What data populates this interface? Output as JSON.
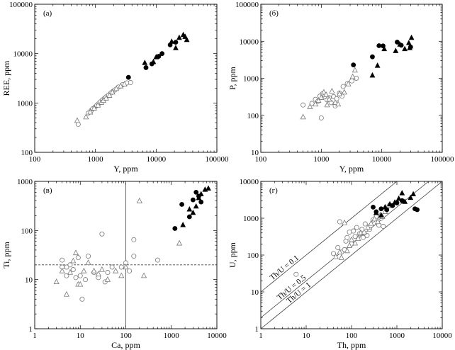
{
  "chart_data": [
    {
      "type": "scatter",
      "panel": "(а)",
      "xlabel": "Y, ppm",
      "ylabel": "REE, ppm",
      "xscale": "log",
      "yscale": "log",
      "xlim": [
        100,
        100000
      ],
      "ylim": [
        100,
        100000
      ],
      "xticks": [
        "100",
        "1000",
        "10000",
        "100000"
      ],
      "yticks": [
        "100",
        "1000",
        "10000",
        "100000"
      ],
      "series": [
        {
          "marker": "open-circle",
          "points": [
            [
              520,
              370
            ],
            [
              760,
              620
            ],
            [
              850,
              700
            ],
            [
              900,
              760
            ],
            [
              980,
              820
            ],
            [
              1050,
              890
            ],
            [
              1120,
              960
            ],
            [
              1200,
              1050
            ],
            [
              1300,
              1150
            ],
            [
              1400,
              1230
            ],
            [
              1500,
              1330
            ],
            [
              1650,
              1450
            ],
            [
              1800,
              1600
            ],
            [
              1950,
              1720
            ],
            [
              2100,
              1850
            ],
            [
              2400,
              2100
            ],
            [
              2800,
              2350
            ],
            [
              3300,
              2550
            ],
            [
              3800,
              2600
            ]
          ]
        },
        {
          "marker": "open-triangle",
          "points": [
            [
              500,
              440
            ],
            [
              700,
              520
            ],
            [
              820,
              650
            ],
            [
              950,
              780
            ],
            [
              1100,
              900
            ],
            [
              1250,
              1020
            ],
            [
              1350,
              1120
            ],
            [
              1500,
              1250
            ],
            [
              1700,
              1420
            ],
            [
              1900,
              1650
            ],
            [
              2200,
              1950
            ],
            [
              2600,
              2200
            ],
            [
              3000,
              2400
            ]
          ]
        },
        {
          "marker": "filled-circle",
          "points": [
            [
              3500,
              3300
            ],
            [
              6800,
              5200
            ],
            [
              8500,
              6200
            ],
            [
              11000,
              8800
            ],
            [
              12500,
              10000
            ],
            [
              17000,
              15000
            ],
            [
              21000,
              17000
            ]
          ]
        },
        {
          "marker": "filled-triangle",
          "points": [
            [
              6500,
              6500
            ],
            [
              9000,
              6800
            ],
            [
              10000,
              8500
            ],
            [
              18000,
              17500
            ],
            [
              21000,
              13000
            ],
            [
              24000,
              21000
            ],
            [
              28000,
              24000
            ],
            [
              30000,
              22000
            ],
            [
              32000,
              19000
            ]
          ]
        }
      ]
    },
    {
      "type": "scatter",
      "panel": "(б)",
      "xlabel": "Y, ppm",
      "ylabel": "P, ppm",
      "xscale": "log",
      "yscale": "log",
      "xlim": [
        100,
        100000
      ],
      "ylim": [
        10,
        100000
      ],
      "xticks": [
        "100",
        "1000",
        "10000",
        "100000"
      ],
      "yticks": [
        "10",
        "100",
        "1000",
        "10000",
        "100000"
      ],
      "series": [
        {
          "marker": "open-circle",
          "points": [
            [
              500,
              190
            ],
            [
              700,
              210
            ],
            [
              800,
              270
            ],
            [
              880,
              240
            ],
            [
              950,
              330
            ],
            [
              1000,
              85
            ],
            [
              1050,
              380
            ],
            [
              1150,
              330
            ],
            [
              1250,
              260
            ],
            [
              1350,
              300
            ],
            [
              1450,
              220
            ],
            [
              1600,
              320
            ],
            [
              1800,
              280
            ],
            [
              2000,
              400
            ],
            [
              2300,
              600
            ],
            [
              2700,
              720
            ],
            [
              3200,
              850
            ],
            [
              3800,
              1000
            ],
            [
              2200,
              330
            ],
            [
              1700,
              180
            ]
          ]
        },
        {
          "marker": "open-triangle",
          "points": [
            [
              500,
              90
            ],
            [
              650,
              170
            ],
            [
              800,
              200
            ],
            [
              900,
              250
            ],
            [
              1000,
              300
            ],
            [
              1100,
              420
            ],
            [
              1200,
              360
            ],
            [
              1350,
              270
            ],
            [
              1500,
              450
            ],
            [
              1700,
              220
            ],
            [
              2000,
              380
            ],
            [
              2400,
              420
            ],
            [
              2800,
              700
            ],
            [
              3300,
              1100
            ],
            [
              3600,
              1650
            ],
            [
              1900,
              200
            ],
            [
              1250,
              190
            ]
          ]
        },
        {
          "marker": "filled-circle",
          "points": [
            [
              3400,
              2300
            ],
            [
              7000,
              3800
            ],
            [
              9000,
              7600
            ],
            [
              10500,
              7500
            ],
            [
              18000,
              9500
            ],
            [
              21000,
              7800
            ],
            [
              30000,
              7000
            ]
          ]
        },
        {
          "marker": "filled-triangle",
          "points": [
            [
              7000,
              1200
            ],
            [
              8500,
              2200
            ],
            [
              11000,
              6200
            ],
            [
              17000,
              5500
            ],
            [
              20000,
              8200
            ],
            [
              24000,
              6200
            ],
            [
              28000,
              9000
            ],
            [
              31000,
              12500
            ],
            [
              29000,
              6600
            ]
          ]
        }
      ]
    },
    {
      "type": "scatter",
      "panel": "(в)",
      "xlabel": "Ca, ppm",
      "ylabel": "Ti, ppm",
      "xscale": "log",
      "yscale": "log",
      "xlim": [
        1,
        10000
      ],
      "ylim": [
        1,
        1000
      ],
      "xticks": [
        "1",
        "10",
        "100",
        "1000",
        "10000"
      ],
      "yticks": [
        "1",
        "10",
        "100",
        "1000"
      ],
      "guides": {
        "vertical_x": 100,
        "horizontal_y": 20
      },
      "series": [
        {
          "marker": "open-circle",
          "points": [
            [
              4,
              25
            ],
            [
              5,
              18
            ],
            [
              5,
              12
            ],
            [
              6,
              20
            ],
            [
              7,
              16
            ],
            [
              8,
              11
            ],
            [
              10,
              12
            ],
            [
              11,
              4
            ],
            [
              13,
              10
            ],
            [
              15,
              30
            ],
            [
              20,
              14
            ],
            [
              25,
              11
            ],
            [
              30,
              85
            ],
            [
              35,
              9
            ],
            [
              40,
              14
            ],
            [
              50,
              18
            ],
            [
              80,
              18
            ],
            [
              100,
              22
            ],
            [
              120,
              15
            ],
            [
              150,
              30
            ],
            [
              150,
              65
            ],
            [
              500,
              25
            ],
            [
              4,
              18
            ],
            [
              9,
              28
            ]
          ]
        },
        {
          "marker": "open-triangle",
          "points": [
            [
              3,
              9
            ],
            [
              4,
              15
            ],
            [
              5,
              5
            ],
            [
              6,
              14
            ],
            [
              7,
              24
            ],
            [
              8,
              35
            ],
            [
              9,
              8
            ],
            [
              10,
              8
            ],
            [
              12,
              15
            ],
            [
              15,
              22
            ],
            [
              20,
              15
            ],
            [
              25,
              13
            ],
            [
              30,
              16
            ],
            [
              40,
              10
            ],
            [
              60,
              15
            ],
            [
              80,
              12
            ],
            [
              100,
              18
            ],
            [
              200,
              400
            ],
            [
              250,
              12
            ],
            [
              1500,
              55
            ]
          ]
        },
        {
          "marker": "filled-circle",
          "points": [
            [
              1200,
              110
            ],
            [
              1700,
              340
            ],
            [
              2500,
              190
            ],
            [
              3000,
              420
            ],
            [
              3500,
              600
            ],
            [
              4000,
              500
            ],
            [
              4500,
              380
            ]
          ]
        },
        {
          "marker": "filled-triangle",
          "points": [
            [
              1800,
              130
            ],
            [
              2500,
              270
            ],
            [
              3000,
              230
            ],
            [
              3500,
              310
            ],
            [
              4000,
              460
            ],
            [
              4500,
              550
            ],
            [
              5500,
              680
            ],
            [
              6500,
              720
            ]
          ]
        }
      ]
    },
    {
      "type": "scatter",
      "panel": "(г)",
      "xlabel": "Th, ppm",
      "ylabel": "U, ppm",
      "xscale": "log",
      "yscale": "log",
      "xlim": [
        1,
        10000
      ],
      "ylim": [
        1,
        10000
      ],
      "xticks": [
        "1",
        "10",
        "100",
        "1000",
        "10000"
      ],
      "yticks": [
        "1",
        "10",
        "100",
        "1000",
        "10000"
      ],
      "reference_lines": [
        {
          "label": "Th/U = 0.1",
          "ratio": 0.1
        },
        {
          "label": "Th/U = 0.5",
          "ratio": 0.5
        },
        {
          "label": "Th/U = 1",
          "ratio": 1
        }
      ],
      "series": [
        {
          "marker": "open-circle",
          "points": [
            [
              6,
              30
            ],
            [
              40,
              110
            ],
            [
              50,
              160
            ],
            [
              55,
              800
            ],
            [
              60,
              120
            ],
            [
              70,
              140
            ],
            [
              75,
              240
            ],
            [
              80,
              300
            ],
            [
              90,
              420
            ],
            [
              100,
              200
            ],
            [
              110,
              450
            ],
            [
              120,
              320
            ],
            [
              130,
              560
            ],
            [
              150,
              380
            ],
            [
              170,
              500
            ],
            [
              200,
              700
            ],
            [
              250,
              500
            ],
            [
              300,
              900
            ],
            [
              350,
              1100
            ],
            [
              400,
              650
            ],
            [
              450,
              1000
            ],
            [
              500,
              600
            ],
            [
              180,
              300
            ],
            [
              220,
              340
            ]
          ]
        },
        {
          "marker": "open-triangle",
          "points": [
            [
              45,
              90
            ],
            [
              55,
              120
            ],
            [
              60,
              85
            ],
            [
              70,
              750
            ],
            [
              80,
              130
            ],
            [
              90,
              180
            ],
            [
              100,
              260
            ],
            [
              120,
              210
            ],
            [
              140,
              280
            ],
            [
              160,
              400
            ],
            [
              190,
              420
            ],
            [
              230,
              560
            ],
            [
              270,
              720
            ],
            [
              320,
              950
            ],
            [
              380,
              800
            ],
            [
              430,
              1200
            ],
            [
              480,
              1100
            ],
            [
              550,
              1500
            ],
            [
              650,
              2200
            ]
          ]
        },
        {
          "marker": "filled-circle",
          "points": [
            [
              300,
              2000
            ],
            [
              350,
              1500
            ],
            [
              450,
              1800
            ],
            [
              600,
              1700
            ],
            [
              800,
              2200
            ],
            [
              1000,
              2600
            ],
            [
              1300,
              3000
            ],
            [
              2500,
              1800
            ],
            [
              2800,
              1700
            ]
          ]
        },
        {
          "marker": "filled-triangle",
          "points": [
            [
              350,
              1400
            ],
            [
              450,
              1200
            ],
            [
              550,
              2000
            ],
            [
              700,
              2400
            ],
            [
              900,
              2700
            ],
            [
              1100,
              3400
            ],
            [
              1300,
              4800
            ],
            [
              1500,
              2800
            ],
            [
              2000,
              3600
            ],
            [
              2300,
              4500
            ]
          ]
        }
      ]
    }
  ]
}
